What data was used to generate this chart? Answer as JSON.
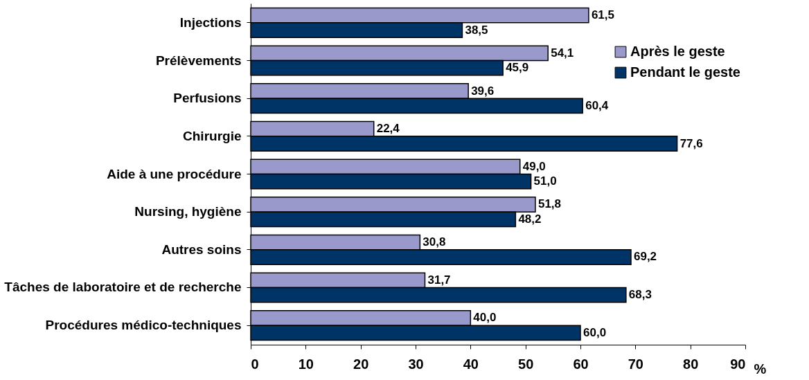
{
  "chart_data": {
    "type": "bar",
    "orientation": "horizontal",
    "xlabel": "%",
    "categories": [
      "Injections",
      "Prélèvements",
      "Perfusions",
      "Chirurgie",
      "Aide à une procédure",
      "Nursing, hygiène",
      "Autres soins",
      "Tâches de laboratoire et de recherche",
      "Procédures médico-techniques"
    ],
    "series": [
      {
        "name": "Après le geste",
        "color": "#9999cc",
        "values": [
          61.5,
          54.1,
          39.6,
          22.4,
          49.0,
          51.8,
          30.8,
          31.7,
          40.0
        ],
        "value_labels": [
          "61,5",
          "54,1",
          "39,6",
          "22,4",
          "49,0",
          "51,8",
          "30,8",
          "31,7",
          "40,0"
        ]
      },
      {
        "name": "Pendant le geste",
        "color": "#003366",
        "values": [
          38.5,
          45.9,
          60.4,
          77.6,
          51.0,
          48.2,
          69.2,
          68.3,
          60.0
        ],
        "value_labels": [
          "38,5",
          "45,9",
          "60,4",
          "77,6",
          "51,0",
          "48,2",
          "69,2",
          "68,3",
          "60,0"
        ]
      }
    ],
    "xlim": [
      0,
      90
    ],
    "xticks": [
      0,
      10,
      20,
      30,
      40,
      50,
      60,
      70,
      80,
      90
    ],
    "grid": false,
    "legend": "top right"
  }
}
